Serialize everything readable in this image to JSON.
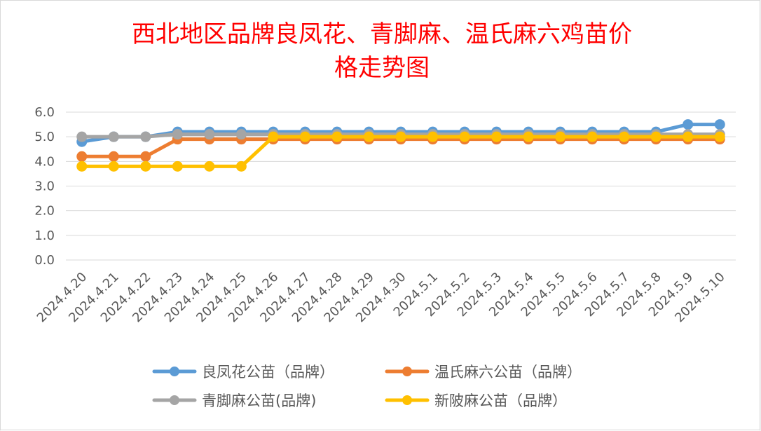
{
  "chart_data": {
    "type": "line",
    "title_line1": "西北地区品牌良凤花、青脚麻、温氏麻六鸡苗价",
    "title_line2": "格走势图",
    "xlabel": "",
    "ylabel": "",
    "ylim": [
      0,
      6
    ],
    "yticks": [
      "0.0",
      "1.0",
      "2.0",
      "3.0",
      "4.0",
      "5.0",
      "6.0"
    ],
    "grid": true,
    "legend_position": "bottom",
    "categories": [
      "2024.4.20",
      "2024.4.21",
      "2024.4.22",
      "2024.4.23",
      "2024.4.24",
      "2024.4.25",
      "2024.4.26",
      "2024.4.27",
      "2024.4.28",
      "2024.4.29",
      "2024.4.30",
      "2024.5.1",
      "2024.5.2",
      "2024.5.3",
      "2024.5.4",
      "2024.5.5",
      "2024.5.6",
      "2024.5.7",
      "2024.5.8",
      "2024.5.9",
      "2024.5.10"
    ],
    "series": [
      {
        "name": "良凤花公苗（品牌）",
        "color": "#5b9bd5",
        "values": [
          4.8,
          5.0,
          5.0,
          5.2,
          5.2,
          5.2,
          5.2,
          5.2,
          5.2,
          5.2,
          5.2,
          5.2,
          5.2,
          5.2,
          5.2,
          5.2,
          5.2,
          5.2,
          5.2,
          5.5,
          5.5
        ]
      },
      {
        "name": "温氏麻六公苗（品牌）",
        "color": "#ed7d31",
        "values": [
          4.2,
          4.2,
          4.2,
          4.9,
          4.9,
          4.9,
          4.9,
          4.9,
          4.9,
          4.9,
          4.9,
          4.9,
          4.9,
          4.9,
          4.9,
          4.9,
          4.9,
          4.9,
          4.9,
          4.9,
          4.9
        ]
      },
      {
        "name": "青脚麻公苗(品牌)",
        "color": "#a5a5a5",
        "values": [
          5.0,
          5.0,
          5.0,
          5.1,
          5.1,
          5.1,
          5.1,
          5.1,
          5.1,
          5.1,
          5.1,
          5.1,
          5.1,
          5.1,
          5.1,
          5.1,
          5.1,
          5.1,
          5.1,
          5.1,
          5.1
        ]
      },
      {
        "name": "新陂麻公苗（品牌）",
        "color": "#ffc000",
        "values": [
          3.8,
          3.8,
          3.8,
          3.8,
          3.8,
          3.8,
          5.0,
          5.0,
          5.0,
          5.0,
          5.0,
          5.0,
          5.0,
          5.0,
          5.0,
          5.0,
          5.0,
          5.0,
          5.0,
          5.0,
          5.0
        ]
      }
    ],
    "legend_order": [
      0,
      1,
      2,
      3
    ]
  }
}
